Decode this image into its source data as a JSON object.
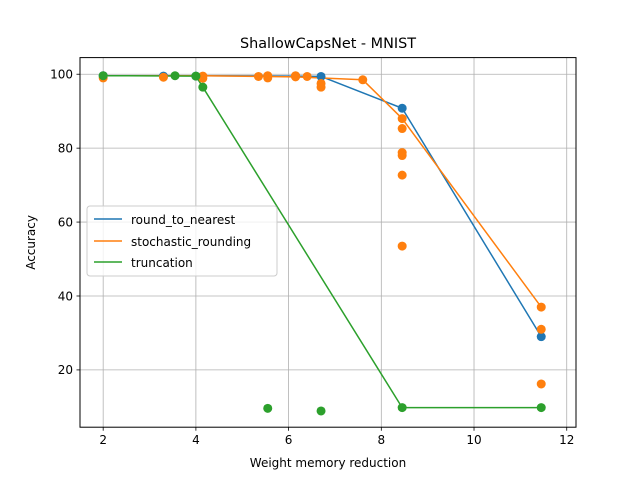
{
  "chart_data": {
    "type": "line",
    "title": "ShallowCapsNet - MNIST",
    "xlabel": "Weight memory reduction",
    "ylabel": "Accuracy",
    "xlim": [
      1.5,
      12.2
    ],
    "ylim": [
      4.5,
      104.5
    ],
    "x_ticks": [
      2,
      4,
      6,
      8,
      10,
      12
    ],
    "y_ticks": [
      20,
      40,
      60,
      80,
      100
    ],
    "grid": true,
    "legend_position": "center-left",
    "series": [
      {
        "name": "round_to_nearest",
        "color": "#1f77b4",
        "line": [
          [
            2.0,
            99.6
          ],
          [
            4.0,
            99.6
          ],
          [
            6.15,
            99.5
          ],
          [
            6.7,
            99.4
          ],
          [
            8.45,
            90.8
          ],
          [
            11.45,
            29.0
          ]
        ],
        "points": [
          [
            2.0,
            99.6
          ],
          [
            3.3,
            99.5
          ],
          [
            4.0,
            99.5
          ],
          [
            6.15,
            99.5
          ],
          [
            6.7,
            99.4
          ],
          [
            8.45,
            90.8
          ],
          [
            11.45,
            29.0
          ]
        ]
      },
      {
        "name": "stochastic_rounding",
        "color": "#ff7f0e",
        "line": [
          [
            2.0,
            99.6
          ],
          [
            4.15,
            99.6
          ],
          [
            6.15,
            99.3
          ],
          [
            7.6,
            98.5
          ],
          [
            8.45,
            88.0
          ],
          [
            11.45,
            37.0
          ]
        ],
        "points": [
          [
            2.0,
            99.0
          ],
          [
            3.3,
            99.2
          ],
          [
            4.15,
            99.5
          ],
          [
            4.15,
            98.9
          ],
          [
            5.35,
            99.4
          ],
          [
            5.55,
            99.6
          ],
          [
            5.55,
            99.0
          ],
          [
            6.15,
            99.6
          ],
          [
            6.15,
            99.3
          ],
          [
            6.4,
            99.4
          ],
          [
            6.7,
            97.5
          ],
          [
            6.7,
            96.5
          ],
          [
            7.6,
            98.5
          ],
          [
            8.45,
            88.0
          ],
          [
            8.45,
            85.3
          ],
          [
            8.45,
            78.8
          ],
          [
            8.45,
            78.0
          ],
          [
            8.45,
            72.7
          ],
          [
            8.45,
            53.5
          ],
          [
            11.45,
            37.0
          ],
          [
            11.45,
            31.0
          ],
          [
            11.45,
            16.2
          ]
        ]
      },
      {
        "name": "truncation",
        "color": "#2ca02c",
        "line": [
          [
            2.0,
            99.6
          ],
          [
            4.0,
            99.5
          ],
          [
            4.15,
            96.5
          ],
          [
            8.45,
            9.8
          ],
          [
            11.45,
            9.8
          ]
        ],
        "points": [
          [
            2.0,
            99.6
          ],
          [
            3.55,
            99.6
          ],
          [
            4.0,
            99.5
          ],
          [
            4.15,
            96.5
          ],
          [
            5.55,
            9.6
          ],
          [
            6.7,
            8.9
          ],
          [
            8.45,
            9.8
          ],
          [
            11.45,
            9.8
          ]
        ]
      }
    ]
  }
}
